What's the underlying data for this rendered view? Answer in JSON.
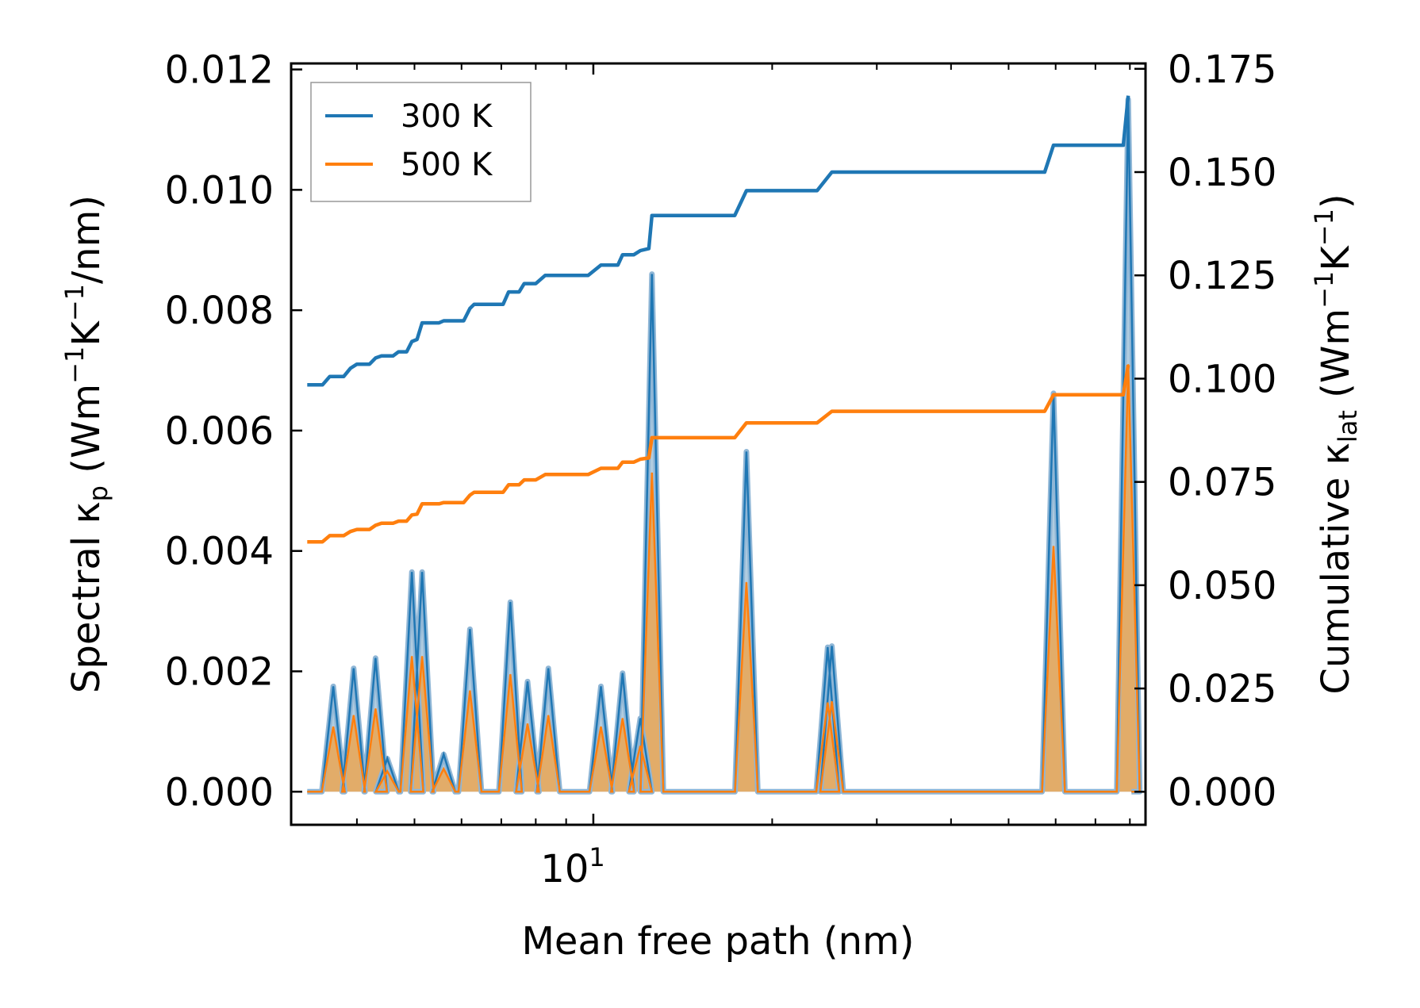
{
  "chart_data": {
    "type": "line",
    "title": "",
    "xlabel": "Mean free path (nm)",
    "ylabel_left": {
      "text": "Spectral κ",
      "sub": "p",
      "units": "(Wm",
      "sup1": "−1",
      "mid": "K",
      "sup2": "−1",
      "tail": "/nm)"
    },
    "ylabel_right": {
      "text": "Cumulative κ",
      "sub": "lat",
      "units": "(Wm",
      "sup1": "−1",
      "mid": "K",
      "sup2": "−1",
      "tail": ")"
    },
    "x_scale": "log",
    "xlim": [
      3.1,
      85
    ],
    "ylim_left": [
      -0.00055,
      0.0121
    ],
    "ylim_right": [
      -0.008,
      0.1763
    ],
    "x_tick_major": {
      "value": 10,
      "base": "10",
      "exp": "1"
    },
    "y_ticks_left": [
      "0.000",
      "0.002",
      "0.004",
      "0.006",
      "0.008",
      "0.010",
      "0.012"
    ],
    "y_ticks_right": [
      "0.000",
      "0.025",
      "0.050",
      "0.075",
      "0.100",
      "0.125",
      "0.150",
      "0.175"
    ],
    "legend_position": "upper-left",
    "legend": [
      "300 K",
      "500 K"
    ],
    "colors": {
      "s300": "#1f77b4",
      "s500": "#ff7f0e",
      "fill300": "#a8c6dc",
      "fill500": "#e8a85c"
    },
    "spectral_peaks": [
      {
        "x": 3.65,
        "k300": 0.00175,
        "k500": 0.00108
      },
      {
        "x": 3.95,
        "k300": 0.00205,
        "k500": 0.00127
      },
      {
        "x": 4.3,
        "k300": 0.00222,
        "k500": 0.00138
      },
      {
        "x": 4.5,
        "k300": 0.00055,
        "k500": 0.00034
      },
      {
        "x": 4.95,
        "k300": 0.00365,
        "k500": 0.00225
      },
      {
        "x": 5.15,
        "k300": 0.00365,
        "k500": 0.00225
      },
      {
        "x": 5.6,
        "k300": 0.00062,
        "k500": 0.00038
      },
      {
        "x": 6.2,
        "k300": 0.0027,
        "k500": 0.00168
      },
      {
        "x": 7.25,
        "k300": 0.00315,
        "k500": 0.00195
      },
      {
        "x": 7.75,
        "k300": 0.00183,
        "k500": 0.00113
      },
      {
        "x": 8.4,
        "k300": 0.00205,
        "k500": 0.00127
      },
      {
        "x": 10.3,
        "k300": 0.00175,
        "k500": 0.00108
      },
      {
        "x": 11.2,
        "k300": 0.00197,
        "k500": 0.00122
      },
      {
        "x": 12.0,
        "k300": 0.00122,
        "k500": 0.00076
      },
      {
        "x": 12.55,
        "k300": 0.0086,
        "k500": 0.0053
      },
      {
        "x": 18.1,
        "k300": 0.00565,
        "k500": 0.00348
      },
      {
        "x": 24.8,
        "k300": 0.0024,
        "k500": 0.00148
      },
      {
        "x": 25.2,
        "k300": 0.00242,
        "k500": 0.0015
      },
      {
        "x": 59.5,
        "k300": 0.00662,
        "k500": 0.00408
      },
      {
        "x": 79.5,
        "k300": 0.0115,
        "k500": 0.0071
      }
    ],
    "series": [
      {
        "name": "300 K",
        "points": [
          [
            3.3,
            0.0985
          ],
          [
            3.5,
            0.0985
          ],
          [
            3.6,
            0.1005
          ],
          [
            3.8,
            0.1005
          ],
          [
            3.9,
            0.1025
          ],
          [
            4.0,
            0.1035
          ],
          [
            4.2,
            0.1035
          ],
          [
            4.3,
            0.105
          ],
          [
            4.4,
            0.1055
          ],
          [
            4.6,
            0.1055
          ],
          [
            4.7,
            0.1065
          ],
          [
            4.85,
            0.1065
          ],
          [
            4.95,
            0.109
          ],
          [
            5.05,
            0.1095
          ],
          [
            5.15,
            0.1135
          ],
          [
            5.5,
            0.1135
          ],
          [
            5.6,
            0.114
          ],
          [
            6.05,
            0.114
          ],
          [
            6.2,
            0.117
          ],
          [
            6.3,
            0.118
          ],
          [
            7.05,
            0.118
          ],
          [
            7.2,
            0.121
          ],
          [
            7.5,
            0.121
          ],
          [
            7.65,
            0.123
          ],
          [
            8.0,
            0.123
          ],
          [
            8.3,
            0.125
          ],
          [
            9.8,
            0.125
          ],
          [
            10.3,
            0.1275
          ],
          [
            11.0,
            0.1275
          ],
          [
            11.2,
            0.13
          ],
          [
            11.7,
            0.13
          ],
          [
            12.0,
            0.131
          ],
          [
            12.4,
            0.1315
          ],
          [
            12.55,
            0.1395
          ],
          [
            17.3,
            0.1395
          ],
          [
            18.1,
            0.1455
          ],
          [
            23.8,
            0.1455
          ],
          [
            25.2,
            0.15
          ],
          [
            57.5,
            0.15
          ],
          [
            59.5,
            0.1565
          ],
          [
            78.0,
            0.1565
          ],
          [
            79.5,
            0.1685
          ]
        ]
      },
      {
        "name": "500 K",
        "points": [
          [
            3.3,
            0.0605
          ],
          [
            3.5,
            0.0605
          ],
          [
            3.6,
            0.062
          ],
          [
            3.8,
            0.062
          ],
          [
            3.9,
            0.063
          ],
          [
            4.0,
            0.0635
          ],
          [
            4.2,
            0.0635
          ],
          [
            4.3,
            0.0645
          ],
          [
            4.4,
            0.065
          ],
          [
            4.6,
            0.065
          ],
          [
            4.7,
            0.0655
          ],
          [
            4.85,
            0.0655
          ],
          [
            4.95,
            0.067
          ],
          [
            5.05,
            0.0672
          ],
          [
            5.15,
            0.0697
          ],
          [
            5.5,
            0.0697
          ],
          [
            5.6,
            0.07
          ],
          [
            6.05,
            0.07
          ],
          [
            6.2,
            0.0718
          ],
          [
            6.3,
            0.0725
          ],
          [
            7.05,
            0.0725
          ],
          [
            7.2,
            0.0743
          ],
          [
            7.5,
            0.0743
          ],
          [
            7.65,
            0.0755
          ],
          [
            8.0,
            0.0755
          ],
          [
            8.3,
            0.0768
          ],
          [
            9.8,
            0.0768
          ],
          [
            10.3,
            0.0783
          ],
          [
            11.0,
            0.0783
          ],
          [
            11.2,
            0.0798
          ],
          [
            11.7,
            0.0798
          ],
          [
            12.0,
            0.0805
          ],
          [
            12.4,
            0.0808
          ],
          [
            12.55,
            0.0857
          ],
          [
            17.3,
            0.0857
          ],
          [
            18.1,
            0.0893
          ],
          [
            23.8,
            0.0893
          ],
          [
            25.2,
            0.0921
          ],
          [
            57.5,
            0.0921
          ],
          [
            59.5,
            0.0961
          ],
          [
            78.0,
            0.0961
          ],
          [
            79.5,
            0.1033
          ]
        ]
      }
    ]
  }
}
